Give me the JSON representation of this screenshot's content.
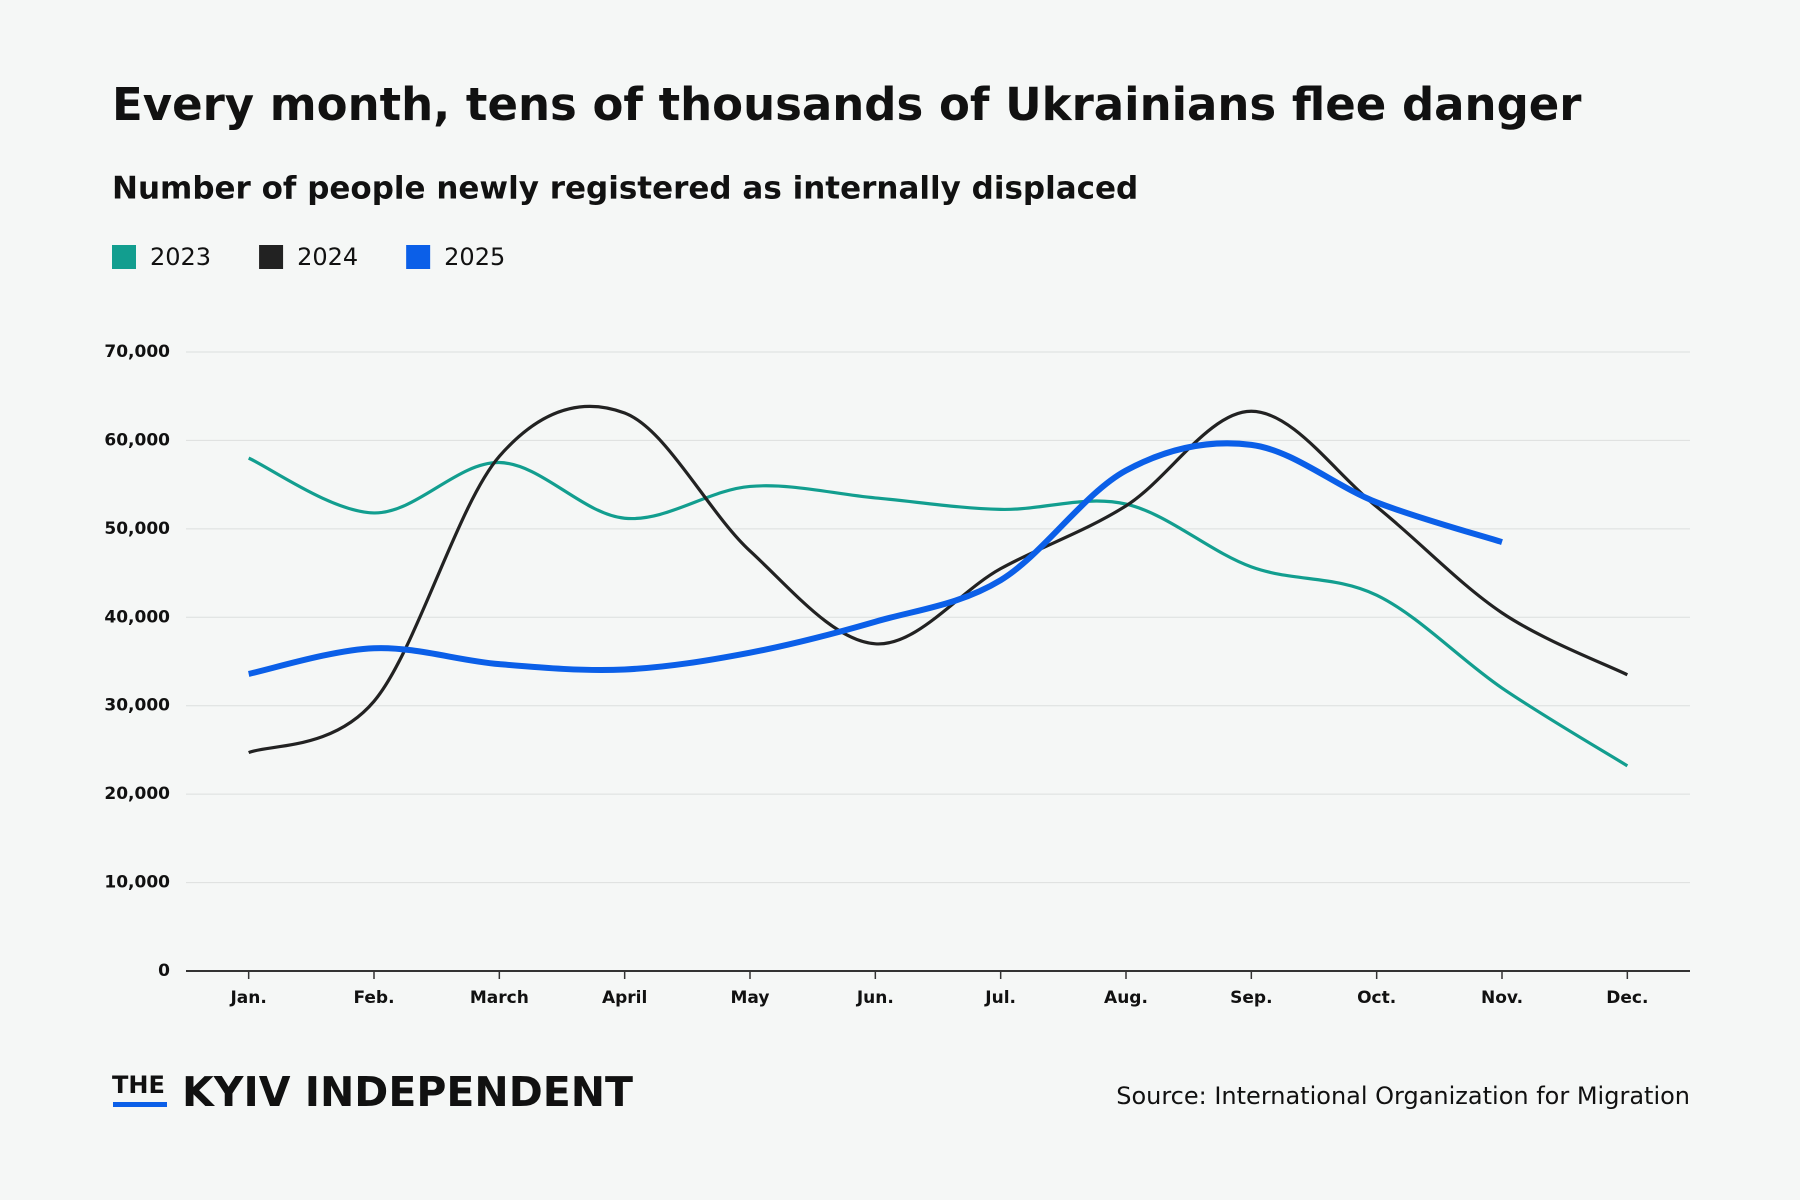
{
  "chart_data": {
    "type": "line",
    "title": "Every month, tens of thousands of Ukrainians flee danger",
    "subtitle": "Number of people newly registered as internally displaced",
    "categories": [
      "Jan.",
      "Feb.",
      "March",
      "April",
      "May",
      "Jun.",
      "Jul.",
      "Aug.",
      "Sep.",
      "Oct.",
      "Nov.",
      "Dec."
    ],
    "series": [
      {
        "name": "2023",
        "color": "#129e8f",
        "values": [
          58000,
          51800,
          57500,
          51200,
          54800,
          53500,
          52200,
          52800,
          45700,
          42500,
          32000,
          23200
        ]
      },
      {
        "name": "2024",
        "color": "#222222",
        "values": [
          24700,
          30500,
          58200,
          63100,
          47500,
          37000,
          45500,
          52600,
          63300,
          52500,
          40500,
          33500
        ]
      },
      {
        "name": "2025",
        "color": "#0b5fe8",
        "values": [
          33600,
          36500,
          34700,
          34100,
          36000,
          39500,
          44200,
          56600,
          59500,
          53000,
          48500,
          null
        ]
      }
    ],
    "ylim": [
      0,
      70000
    ],
    "yticks": [
      0,
      {
        "value": 10000,
        "label": "10,000"
      },
      {
        "value": 20000,
        "label": "20,000"
      },
      {
        "value": 30000,
        "label": "30,000"
      },
      {
        "value": 40000,
        "label": "40,000"
      },
      {
        "value": 50000,
        "label": "50,000"
      },
      {
        "value": 60000,
        "label": "60,000"
      },
      {
        "value": 70000,
        "label": "70,000"
      }
    ],
    "grid": true,
    "brand_prefix": "THE",
    "brand": "KYIV INDEPENDENT",
    "source": "Source: International Organization for Migration"
  }
}
